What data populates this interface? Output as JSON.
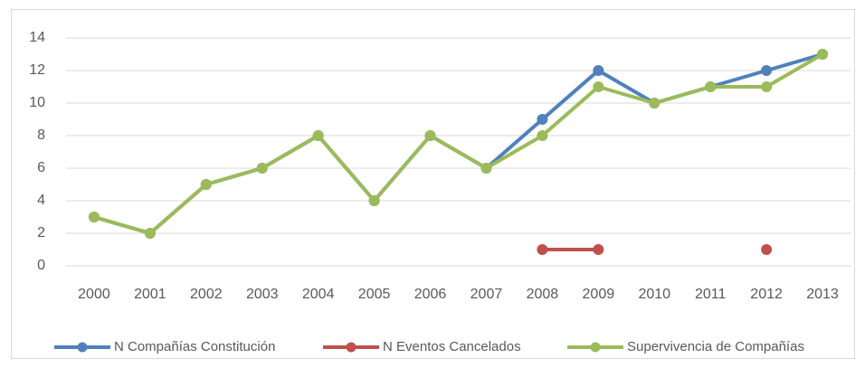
{
  "chart_data": {
    "type": "line",
    "categories": [
      "2000",
      "2001",
      "2002",
      "2003",
      "2004",
      "2005",
      "2006",
      "2007",
      "2008",
      "2009",
      "2010",
      "2011",
      "2012",
      "2013"
    ],
    "series": [
      {
        "name": "N Compañías Constitución",
        "color": "#4f81bd",
        "values": [
          3,
          2,
          5,
          6,
          8,
          4,
          8,
          6,
          9,
          12,
          10,
          11,
          12,
          13
        ]
      },
      {
        "name": "N Eventos Cancelados",
        "color": "#c0504d",
        "values": [
          null,
          null,
          null,
          null,
          null,
          null,
          null,
          null,
          1,
          1,
          null,
          null,
          1,
          null
        ]
      },
      {
        "name": "Supervivencia de Compañías",
        "color": "#9bbb59",
        "values": [
          3,
          2,
          5,
          6,
          8,
          4,
          8,
          6,
          8,
          11,
          10,
          11,
          11,
          13
        ]
      }
    ],
    "ylim": [
      0,
      14
    ],
    "yticks": [
      0,
      2,
      4,
      6,
      8,
      10,
      12,
      14
    ],
    "grid": true,
    "legend": "bottom"
  }
}
